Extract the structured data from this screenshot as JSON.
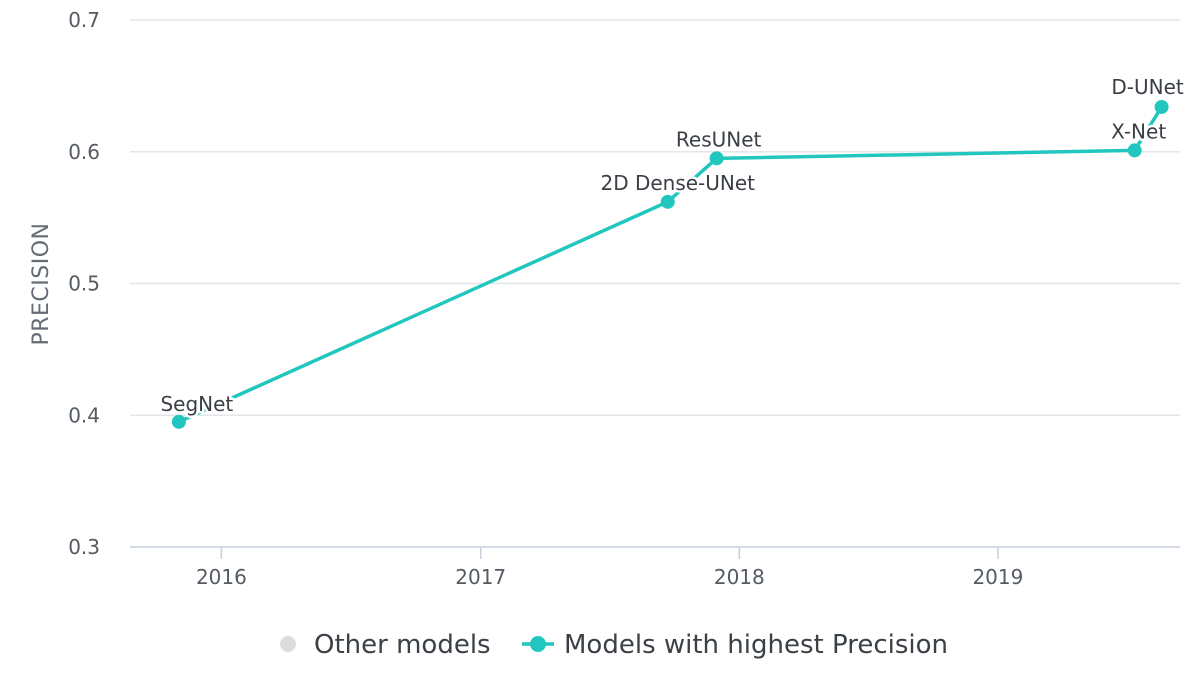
{
  "chart_data": {
    "type": "line",
    "ylabel": "PRECISION",
    "xlabel": "",
    "title": "",
    "ylim": [
      0.3,
      0.7
    ],
    "yticks": [
      "0.3",
      "0.4",
      "0.5",
      "0.6",
      "0.7"
    ],
    "xticks": [
      "2016",
      "2017",
      "2018",
      "2019"
    ],
    "xlim": [
      "2015-08-25",
      "2019-09-15"
    ],
    "grid": true,
    "legend_position": "bottom",
    "series": [
      {
        "name": "Other models",
        "color": "#dddddd",
        "points": []
      },
      {
        "name": "Models with highest Precision",
        "color": "#21c7bf",
        "points": [
          {
            "label": "SegNet",
            "date": "2015-11-02",
            "value": 0.395
          },
          {
            "label": "2D Dense-UNet",
            "date": "2017-09-22",
            "value": 0.562
          },
          {
            "label": "ResUNet",
            "date": "2017-11-30",
            "value": 0.595
          },
          {
            "label": "X-Net",
            "date": "2019-07-13",
            "value": 0.601
          },
          {
            "label": "D-UNet",
            "date": "2019-08-20",
            "value": 0.634
          }
        ]
      }
    ]
  }
}
